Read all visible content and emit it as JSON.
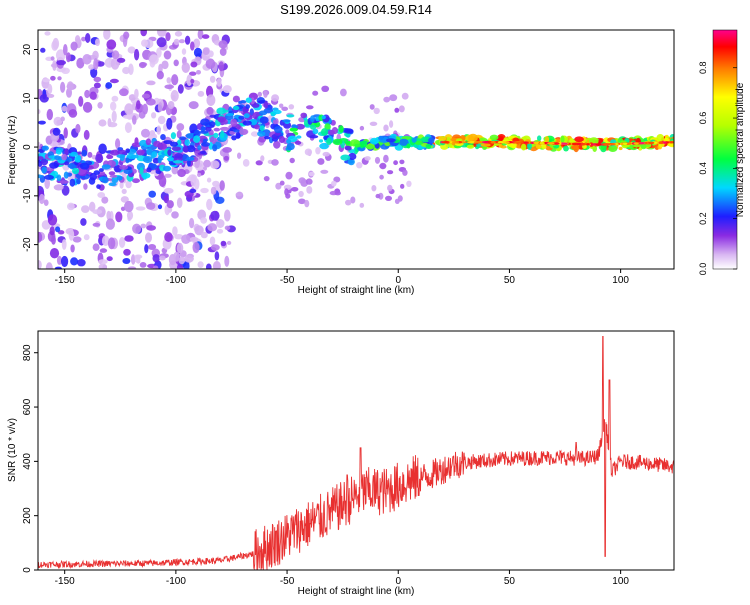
{
  "title": "S199.2026.009.04.59.R14",
  "chart_data": [
    {
      "type": "heatmap",
      "xlabel": "Height of straight line (km)",
      "ylabel": "Frequency (Hz)",
      "xlim": [
        -162,
        124
      ],
      "ylim": [
        -25,
        24
      ],
      "xticks": [
        -150,
        -100,
        -50,
        0,
        50,
        100
      ],
      "yticks": [
        -20,
        -10,
        0,
        10,
        20
      ],
      "colorbar": {
        "label": "Normalized spectral amplitude",
        "range": [
          0,
          0.95
        ],
        "ticks": [
          0.0,
          0.2,
          0.4,
          0.6,
          0.8
        ]
      },
      "ridge": {
        "x": [
          -162,
          -135,
          -110,
          -95,
          -80,
          -65,
          -50,
          -40,
          -30,
          -20,
          -10,
          0,
          20,
          50,
          90,
          124
        ],
        "frequency": [
          -3,
          -5,
          -2,
          0,
          4,
          7,
          3,
          4,
          2,
          0,
          1,
          1,
          1,
          1,
          0.5,
          1
        ]
      }
    },
    {
      "type": "line",
      "xlabel": "Height of straight line (km)",
      "ylabel": "SNR (10 * v/v)",
      "xlim": [
        -162,
        124
      ],
      "ylim": [
        0,
        880
      ],
      "xticks": [
        -150,
        -100,
        -50,
        0,
        50,
        100
      ],
      "yticks": [
        0,
        200,
        400,
        600,
        800
      ],
      "color": "#e83030",
      "trend": {
        "x": [
          -162,
          -110,
          -80,
          -65,
          -55,
          -45,
          -35,
          -25,
          -15,
          -5,
          5,
          15,
          25,
          35,
          50,
          70,
          85,
          90,
          93,
          96,
          100,
          110,
          124
        ],
        "snr": [
          20,
          25,
          35,
          60,
          100,
          150,
          190,
          240,
          290,
          290,
          330,
          350,
          390,
          400,
          410,
          415,
          410,
          420,
          560,
          360,
          400,
          395,
          380
        ]
      },
      "spikes": [
        {
          "x": -17,
          "snr": 450
        },
        {
          "x": -23,
          "snr": 350
        },
        {
          "x": 92,
          "snr": 860
        },
        {
          "x": 93,
          "snr": 50
        },
        {
          "x": 95,
          "snr": 700
        },
        {
          "x": 80,
          "snr": 470
        }
      ]
    }
  ]
}
